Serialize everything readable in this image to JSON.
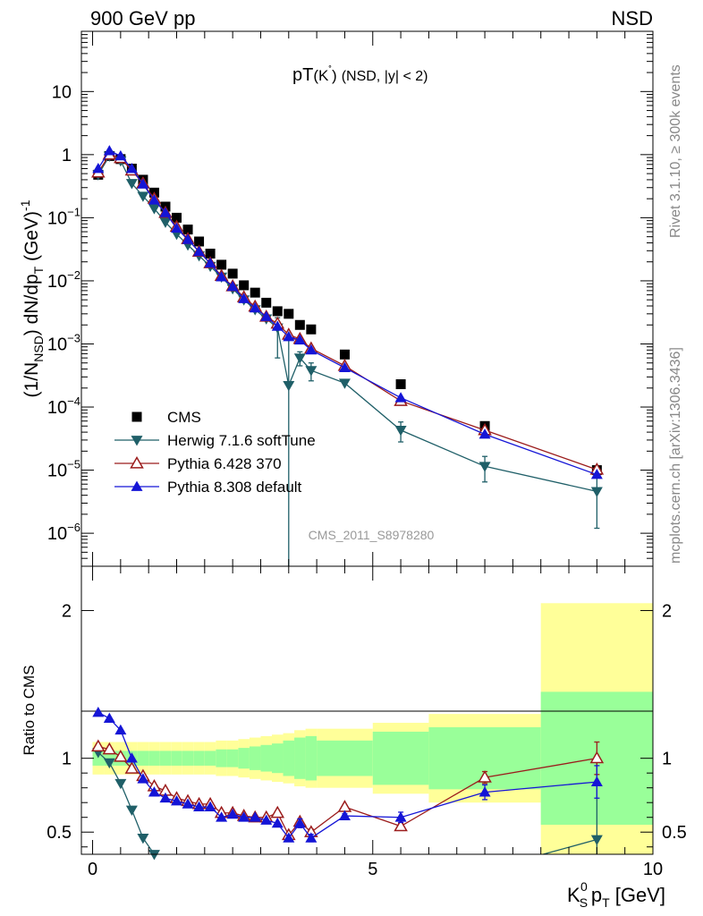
{
  "header": {
    "energy_label": "900 GeV pp",
    "process_label": "NSD"
  },
  "side_labels": {
    "rivet": "Rivet 3.1.10, ≥ 300k events",
    "mcplots": "mcplots.cern.ch [arXiv:1306.3436]"
  },
  "chart_data": [
    {
      "type": "scatter",
      "panel": "main",
      "title": "pT(K˚) (NSD, |y| < 2)",
      "title_parts": {
        "main": "pT",
        "paren": "(K",
        "sup": "˚",
        "tail": ")",
        "small": "(NSD, |y| < 2)"
      },
      "ylabel": "(1/N_NSD) dN/dp_T (GeV)^-1",
      "xlabel": "K_S^0 p_T [GeV]",
      "xlim": [
        -0.2,
        10
      ],
      "ylim": [
        3e-07,
        90
      ],
      "yscale": "log",
      "watermark": "CMS_2011_S8978280",
      "legend_position": "center-left",
      "y_tick_labels": [
        {
          "v": 10,
          "m": "10",
          "e": ""
        },
        {
          "v": 1,
          "m": "1",
          "e": ""
        },
        {
          "v": 0.1,
          "m": "10",
          "e": "−1"
        },
        {
          "v": 0.01,
          "m": "10",
          "e": "−2"
        },
        {
          "v": 0.001,
          "m": "10",
          "e": "−3"
        },
        {
          "v": 0.0001,
          "m": "10",
          "e": "−4"
        },
        {
          "v": 1e-05,
          "m": "10",
          "e": "−5"
        },
        {
          "v": 1e-06,
          "m": "10",
          "e": "−6"
        }
      ],
      "series": [
        {
          "name": "CMS",
          "style": "filled-square",
          "color": "#000000",
          "x": [
            0.1,
            0.3,
            0.5,
            0.7,
            0.9,
            1.1,
            1.3,
            1.5,
            1.7,
            1.9,
            2.1,
            2.3,
            2.5,
            2.7,
            2.9,
            3.1,
            3.3,
            3.5,
            3.7,
            3.9,
            4.5,
            5.5,
            7.0,
            9.0
          ],
          "y": [
            0.48,
            0.95,
            0.85,
            0.6,
            0.4,
            0.25,
            0.15,
            0.1,
            0.065,
            0.042,
            0.027,
            0.018,
            0.013,
            0.0085,
            0.0065,
            0.0045,
            0.0033,
            0.003,
            0.002,
            0.0017,
            0.00068,
            0.00023,
            5e-05,
            1e-05
          ]
        },
        {
          "name": "Herwig 7.1.6 softTune",
          "style": "filled-triangle-down",
          "color": "#1f5f68",
          "x": [
            0.1,
            0.3,
            0.5,
            0.7,
            0.9,
            1.1,
            1.3,
            1.5,
            1.7,
            1.9,
            2.1,
            2.3,
            2.5,
            2.7,
            2.9,
            3.1,
            3.3,
            3.5,
            3.7,
            3.9,
            4.5,
            5.5,
            7.0,
            9.0
          ],
          "y": [
            0.48,
            0.95,
            0.8,
            0.35,
            0.22,
            0.14,
            0.085,
            0.055,
            0.037,
            0.025,
            0.017,
            0.0115,
            0.0075,
            0.005,
            0.0035,
            0.0025,
            0.0018,
            0.00022,
            0.0006,
            0.00038,
            0.00024,
            4.3e-05,
            1.15e-05,
            4.6e-06
          ],
          "err_lo": [
            0,
            0,
            0,
            0,
            0,
            0,
            0,
            0,
            0,
            0,
            0,
            0,
            0,
            0,
            0,
            0,
            0.0012,
            0.00022,
            0.00015,
            0.00012,
            0,
            1.5e-05,
            5e-06,
            3.4e-06
          ],
          "err_hi": [
            0,
            0,
            0,
            0,
            0,
            0,
            0,
            0,
            0,
            0,
            0,
            0,
            0,
            0,
            0,
            0,
            0.0008,
            0.0012,
            0.00015,
            0.00012,
            0,
            1.5e-05,
            5e-06,
            3e-06
          ]
        },
        {
          "name": "Pythia 6.428 370",
          "style": "open-triangle-up",
          "color": "#9b1c1c",
          "x": [
            0.1,
            0.3,
            0.5,
            0.7,
            0.9,
            1.1,
            1.3,
            1.5,
            1.7,
            1.9,
            2.1,
            2.3,
            2.5,
            2.7,
            2.9,
            3.1,
            3.3,
            3.5,
            3.7,
            3.9,
            4.5,
            5.5,
            7.0,
            9.0
          ],
          "y": [
            0.52,
            1.0,
            0.88,
            0.56,
            0.35,
            0.2,
            0.12,
            0.072,
            0.046,
            0.029,
            0.019,
            0.012,
            0.0082,
            0.0055,
            0.0039,
            0.0027,
            0.0021,
            0.0014,
            0.0012,
            0.00085,
            0.00045,
            0.000125,
            4.3e-05,
            1.02e-05
          ]
        },
        {
          "name": "Pythia 8.308 default",
          "style": "filled-triangle-up",
          "color": "#1515d6",
          "x": [
            0.1,
            0.3,
            0.5,
            0.7,
            0.9,
            1.1,
            1.3,
            1.5,
            1.7,
            1.9,
            2.1,
            2.3,
            2.5,
            2.7,
            2.9,
            3.1,
            3.3,
            3.5,
            3.7,
            3.9,
            4.5,
            5.5,
            7.0,
            9.0
          ],
          "y": [
            0.6,
            1.15,
            0.95,
            0.6,
            0.34,
            0.19,
            0.12,
            0.068,
            0.045,
            0.029,
            0.019,
            0.0115,
            0.0081,
            0.0052,
            0.0037,
            0.0027,
            0.0019,
            0.0013,
            0.00115,
            0.0008,
            0.00042,
            0.00014,
            3.7e-05,
            8.5e-06
          ]
        }
      ]
    },
    {
      "type": "scatter",
      "panel": "ratio",
      "ylabel": "Ratio to CMS",
      "xlim": [
        -0.2,
        10
      ],
      "ylim": [
        0.35,
        2.3
      ],
      "yscale": "linear",
      "reference_line": 1.0,
      "x_tick_labels": [
        0,
        5,
        10
      ],
      "y_tick_labels": [
        "0.5",
        "1",
        "2"
      ],
      "uncertainty_bands": {
        "stat_color": "#99ff99",
        "total_color": "#ffff99",
        "bins": [
          {
            "x0": 0.0,
            "x1": 0.2,
            "stat": 0.05,
            "total": 0.11
          },
          {
            "x0": 0.2,
            "x1": 0.4,
            "stat": 0.05,
            "total": 0.11
          },
          {
            "x0": 0.4,
            "x1": 0.6,
            "stat": 0.05,
            "total": 0.11
          },
          {
            "x0": 0.6,
            "x1": 0.8,
            "stat": 0.05,
            "total": 0.11
          },
          {
            "x0": 0.8,
            "x1": 1.0,
            "stat": 0.05,
            "total": 0.11
          },
          {
            "x0": 1.0,
            "x1": 1.2,
            "stat": 0.05,
            "total": 0.11
          },
          {
            "x0": 1.2,
            "x1": 1.4,
            "stat": 0.05,
            "total": 0.11
          },
          {
            "x0": 1.4,
            "x1": 1.6,
            "stat": 0.05,
            "total": 0.11
          },
          {
            "x0": 1.6,
            "x1": 1.8,
            "stat": 0.05,
            "total": 0.11
          },
          {
            "x0": 1.8,
            "x1": 2.0,
            "stat": 0.05,
            "total": 0.11
          },
          {
            "x0": 2.0,
            "x1": 2.2,
            "stat": 0.05,
            "total": 0.11
          },
          {
            "x0": 2.2,
            "x1": 2.4,
            "stat": 0.06,
            "total": 0.12
          },
          {
            "x0": 2.4,
            "x1": 2.6,
            "stat": 0.06,
            "total": 0.12
          },
          {
            "x0": 2.6,
            "x1": 2.8,
            "stat": 0.07,
            "total": 0.13
          },
          {
            "x0": 2.8,
            "x1": 3.0,
            "stat": 0.08,
            "total": 0.14
          },
          {
            "x0": 3.0,
            "x1": 3.2,
            "stat": 0.09,
            "total": 0.15
          },
          {
            "x0": 3.2,
            "x1": 3.4,
            "stat": 0.1,
            "total": 0.16
          },
          {
            "x0": 3.4,
            "x1": 3.6,
            "stat": 0.12,
            "total": 0.17
          },
          {
            "x0": 3.6,
            "x1": 3.8,
            "stat": 0.14,
            "total": 0.19
          },
          {
            "x0": 3.8,
            "x1": 4.0,
            "stat": 0.15,
            "total": 0.2
          },
          {
            "x0": 4.0,
            "x1": 5.0,
            "stat": 0.12,
            "total": 0.2
          },
          {
            "x0": 5.0,
            "x1": 6.0,
            "stat": 0.18,
            "total": 0.24
          },
          {
            "x0": 6.0,
            "x1": 8.0,
            "stat": 0.21,
            "total": 0.3
          },
          {
            "x0": 8.0,
            "x1": 10.0,
            "stat": 0.45,
            "total": 1.05
          }
        ]
      },
      "series": [
        {
          "name": "Herwig 7.1.6 softTune",
          "style": "filled-triangle-down",
          "color": "#1f5f68",
          "x": [
            0.1,
            0.3,
            0.5,
            0.7,
            0.9,
            1.1
          ],
          "y": [
            1.04,
            0.97,
            0.83,
            0.65,
            0.46,
            0.35
          ],
          "extra": {
            "x": 9.0,
            "y": 0.45,
            "err_lo": 0.15,
            "err_hi": 0.6
          }
        },
        {
          "name": "Pythia 6.428 370",
          "style": "open-triangle-up",
          "color": "#9b1c1c",
          "x": [
            0.1,
            0.3,
            0.5,
            0.7,
            0.9,
            1.1,
            1.3,
            1.5,
            1.7,
            1.9,
            2.1,
            2.3,
            2.5,
            2.7,
            2.9,
            3.1,
            3.3,
            3.5,
            3.7,
            3.9,
            4.5,
            5.5,
            7.0,
            9.0
          ],
          "y": [
            1.08,
            1.06,
            1.01,
            0.93,
            0.88,
            0.81,
            0.78,
            0.73,
            0.71,
            0.69,
            0.69,
            0.63,
            0.63,
            0.61,
            0.6,
            0.6,
            0.63,
            0.48,
            0.57,
            0.5,
            0.67,
            0.54,
            0.87,
            1.0
          ],
          "err": [
            0,
            0,
            0,
            0,
            0,
            0,
            0,
            0,
            0,
            0,
            0,
            0,
            0,
            0,
            0,
            0,
            0,
            0,
            0.015,
            0.02,
            0,
            0.02,
            0.04,
            0.11
          ]
        },
        {
          "name": "Pythia 8.308 default",
          "style": "filled-triangle-up",
          "color": "#1515d6",
          "x": [
            0.1,
            0.3,
            0.5,
            0.7,
            0.9,
            1.1,
            1.3,
            1.5,
            1.7,
            1.9,
            2.1,
            2.3,
            2.5,
            2.7,
            2.9,
            3.1,
            3.3,
            3.5,
            3.7,
            3.9,
            4.5,
            5.5,
            7.0,
            9.0
          ],
          "y": [
            1.31,
            1.27,
            1.19,
            1.0,
            0.86,
            0.77,
            0.73,
            0.71,
            0.69,
            0.67,
            0.67,
            0.6,
            0.62,
            0.6,
            0.6,
            0.58,
            0.56,
            0.46,
            0.56,
            0.46,
            0.61,
            0.6,
            0.77,
            0.84
          ],
          "err": [
            0,
            0,
            0,
            0,
            0,
            0,
            0,
            0,
            0,
            0,
            0,
            0,
            0,
            0,
            0,
            0,
            0,
            0.02,
            0.03,
            0.025,
            0.015,
            0.035,
            0.05,
            0.11
          ]
        }
      ]
    }
  ]
}
